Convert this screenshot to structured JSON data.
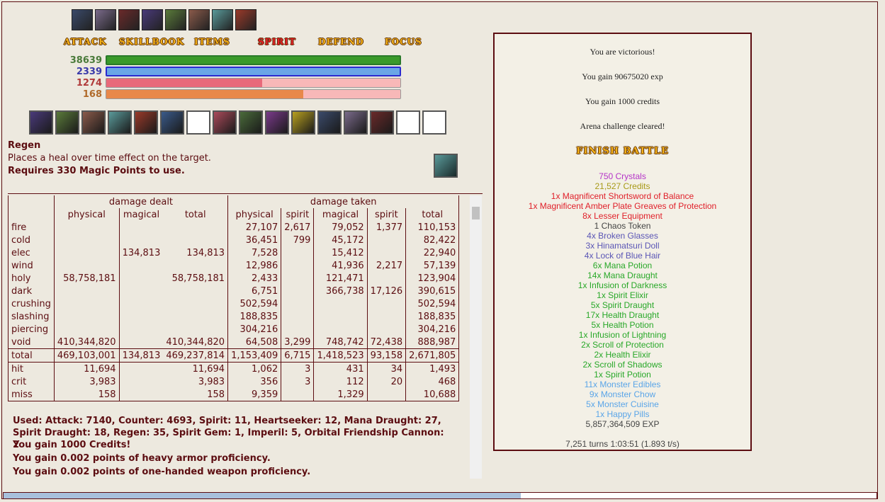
{
  "menu": [
    "ATTACK",
    "SKILLBOOK",
    "ITEMS",
    "SPIRIT",
    "DEFEND",
    "FOCUS"
  ],
  "vitals": [
    "38639",
    "2339",
    "1274",
    "168"
  ],
  "skill": {
    "name": "Regen",
    "description": "Places a heal over time effect on the target.",
    "requirement": "Requires 330 Magic Points to use."
  },
  "stats_table": {
    "group_headers": [
      "damage dealt",
      "damage taken"
    ],
    "columns": [
      "physical",
      "magical",
      "total",
      "physical",
      "spirit",
      "magical",
      "spirit",
      "total"
    ],
    "rows": [
      [
        "fire",
        null,
        null,
        null,
        "27,107",
        "2,617",
        "79,052",
        "1,377",
        "110,153"
      ],
      [
        "cold",
        null,
        null,
        null,
        "36,451",
        "799",
        "45,172",
        null,
        "82,422"
      ],
      [
        "elec",
        null,
        "134,813",
        "134,813",
        "7,528",
        null,
        "15,412",
        null,
        "22,940"
      ],
      [
        "wind",
        null,
        null,
        null,
        "12,986",
        null,
        "41,936",
        "2,217",
        "57,139"
      ],
      [
        "holy",
        "58,758,181",
        null,
        "58,758,181",
        "2,433",
        null,
        "121,471",
        null,
        "123,904"
      ],
      [
        "dark",
        null,
        null,
        null,
        "6,751",
        null,
        "366,738",
        "17,126",
        "390,615"
      ],
      [
        "crushing",
        null,
        null,
        null,
        "502,594",
        null,
        null,
        null,
        "502,594"
      ],
      [
        "slashing",
        null,
        null,
        null,
        "188,835",
        null,
        null,
        null,
        "188,835"
      ],
      [
        "piercing",
        null,
        null,
        null,
        "304,216",
        null,
        null,
        null,
        "304,216"
      ],
      [
        "void",
        "410,344,820",
        null,
        "410,344,820",
        "64,508",
        "3,299",
        "748,742",
        "72,438",
        "888,987"
      ],
      [
        "total",
        "469,103,001",
        "134,813",
        "469,237,814",
        "1,153,409",
        "6,715",
        "1,418,523",
        "93,158",
        "2,671,805"
      ],
      [
        "hit",
        "11,694",
        null,
        "11,694",
        "1,062",
        "3",
        "431",
        "34",
        "1,493"
      ],
      [
        "crit",
        "3,983",
        null,
        "3,983",
        "356",
        "3",
        "112",
        "20",
        "468"
      ],
      [
        "miss",
        "158",
        null,
        "158",
        "9,359",
        null,
        "1,329",
        null,
        "10,688"
      ]
    ]
  },
  "log": [
    "Used: Attack: 7140, Counter: 4693, Spirit: 11, Heartseeker: 12, Mana Draught: 27, Spirit Draught: 18, Regen: 35, Spirit Gem: 1, Imperil: 5, Orbital Friendship Cannon: 2",
    "You gain 1000 Credits!",
    "You gain 0.002 points of heavy armor proficiency.",
    "You gain 0.002 points of one-handed weapon proficiency."
  ],
  "result": {
    "messages": [
      "You are victorious!",
      "You gain 90675020 exp",
      "You gain 1000 credits",
      "Arena challenge cleared!"
    ],
    "button": "FINISH BATTLE",
    "drops": [
      {
        "text": "750 Crystals",
        "color": "#b534c8"
      },
      {
        "text": "21,527 Credits",
        "color": "#a89a18"
      },
      {
        "text": "1x Magnificent Shortsword of Balance",
        "color": "#e0202a"
      },
      {
        "text": "1x Magnificent Amber Plate Greaves of Protection",
        "color": "#e0202a"
      },
      {
        "text": "8x Lesser Equipment",
        "color": "#e0202a"
      },
      {
        "text": "1 Chaos Token",
        "color": "#444444"
      },
      {
        "text": "4x Broken Glasses",
        "color": "#5a55b5"
      },
      {
        "text": "3x Hinamatsuri Doll",
        "color": "#5a55b5"
      },
      {
        "text": "4x Lock of Blue Hair",
        "color": "#5a55b5"
      },
      {
        "text": "6x Mana Potion",
        "color": "#28a828"
      },
      {
        "text": "14x Mana Draught",
        "color": "#28a828"
      },
      {
        "text": "1x Infusion of Darkness",
        "color": "#28a828"
      },
      {
        "text": "1x Spirit Elixir",
        "color": "#28a828"
      },
      {
        "text": "5x Spirit Draught",
        "color": "#28a828"
      },
      {
        "text": "17x Health Draught",
        "color": "#28a828"
      },
      {
        "text": "5x Health Potion",
        "color": "#28a828"
      },
      {
        "text": "1x Infusion of Lightning",
        "color": "#28a828"
      },
      {
        "text": "2x Scroll of Protection",
        "color": "#28a828"
      },
      {
        "text": "2x Health Elixir",
        "color": "#28a828"
      },
      {
        "text": "2x Scroll of Shadows",
        "color": "#28a828"
      },
      {
        "text": "1x Spirit Potion",
        "color": "#28a828"
      },
      {
        "text": "11x Monster Edibles",
        "color": "#5aa5e8"
      },
      {
        "text": "9x Monster Chow",
        "color": "#5aa5e8"
      },
      {
        "text": "5x Monster Cuisine",
        "color": "#5aa5e8"
      },
      {
        "text": "1x Happy Pills",
        "color": "#5aa5e8"
      },
      {
        "text": "5,857,364,509 EXP",
        "color": "#444444"
      }
    ],
    "footer": "7,251 turns 1:03:51 (1.893 t/s)"
  }
}
